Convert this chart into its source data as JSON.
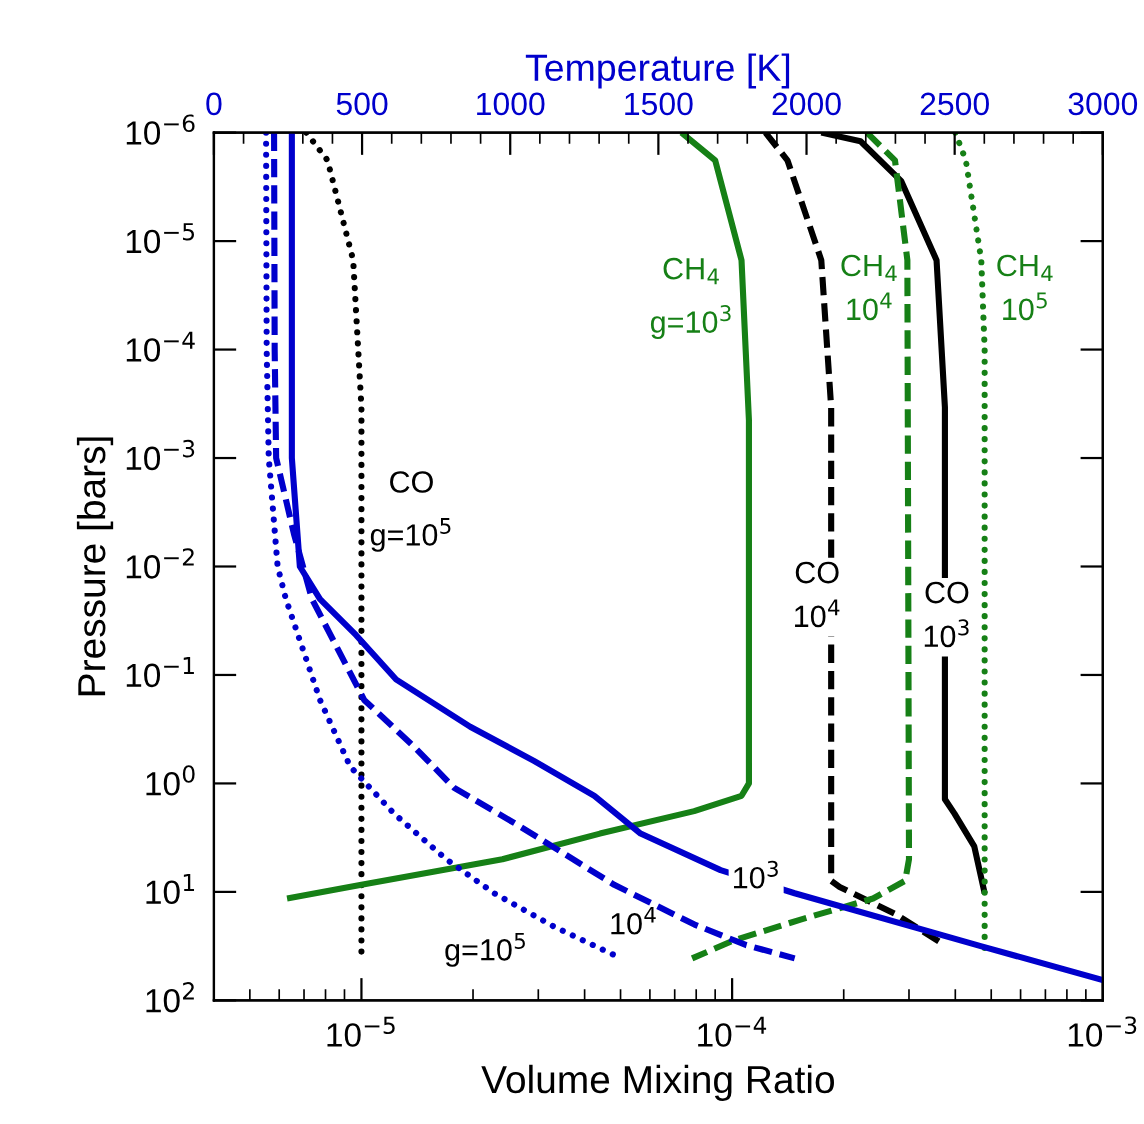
{
  "chart_data": {
    "type": "line",
    "xlabel": "Volume Mixing Ratio",
    "ylabel": "Pressure [bars]",
    "x2label": "Temperature [K]",
    "log": "xy",
    "xlim": [
      4e-06,
      0.001
    ],
    "xticks": [
      {
        "value": 1e-05,
        "label": "10$^{−5}$"
      },
      {
        "value": 0.0001,
        "label": "10$^{−4}$"
      },
      {
        "value": 0.001,
        "label": "10$^{−3}$"
      }
    ],
    "x2lim": [
      0,
      3000
    ],
    "x2ticks": [
      0,
      500,
      1000,
      1500,
      2000,
      2500,
      3000
    ],
    "ylim": [
      100,
      1e-06
    ],
    "yticks": [
      {
        "value": 1e-06,
        "label": "10$^{−6}$"
      },
      {
        "value": 1e-05,
        "label": "10$^{−5}$"
      },
      {
        "value": 0.0001,
        "label": "10$^{−4}$"
      },
      {
        "value": 0.001,
        "label": "10$^{−3}$"
      },
      {
        "value": 0.01,
        "label": "10$^{−2}$"
      },
      {
        "value": 0.1,
        "label": "10$^{−1}$"
      },
      {
        "value": 1,
        "label": "10$^{0}$"
      },
      {
        "value": 10,
        "label": "10$^{1}$"
      },
      {
        "value": 100,
        "label": "10$^{2}$"
      }
    ],
    "series": [
      {
        "axis": "x2",
        "color": "#0000cc",
        "line_style": "solid",
        "x": [
          263,
          263,
          263,
          290,
          358,
          480,
          615,
          865,
          1080,
          1284,
          1440,
          1710,
          1960,
          2588,
          3000
        ],
        "values": [
          1e-06,
          0.0001,
          0.001,
          0.01,
          0.02,
          0.043,
          0.11,
          0.3,
          0.62,
          1.3,
          2.9,
          6.3,
          10.3,
          31.6,
          65
        ]
      },
      {
        "axis": "x2",
        "color": "#0000cc",
        "line_style": "dashed",
        "x": [
          203,
          205,
          210,
          270,
          331,
          507,
          676,
          811,
          1034,
          1351,
          1622,
          1797,
          1960
        ],
        "values": [
          1e-06,
          0.0001,
          0.001,
          0.005,
          0.02,
          0.17,
          0.46,
          1.1,
          2.5,
          8.6,
          20,
          31,
          41
        ]
      },
      {
        "axis": "x2",
        "color": "#0000cc",
        "line_style": "dotted",
        "x": [
          176,
          178,
          185,
          215,
          243,
          358,
          460,
          608,
          784,
          946,
          1149,
          1358
        ],
        "values": [
          1e-06,
          0.0001,
          0.001,
          0.01,
          0.02,
          0.17,
          0.7,
          1.9,
          5,
          10.3,
          21,
          39
        ]
      },
      {
        "name": "CO\ng=10$^{5}$",
        "color": "#000000",
        "line_style": "dotted",
        "x": [
          7.1e-06,
          8.1e-06,
          9.5e-06,
          1e-05,
          1e-05
        ],
        "values": [
          1e-06,
          1.8e-06,
          1.5e-05,
          0.00034,
          38
        ]
      },
      {
        "name": "CO\n10$^{4}$",
        "color": "#000000",
        "line_style": "dashed",
        "x": [
          0.000123,
          0.000141,
          0.000174,
          0.000185,
          0.000185,
          0.000195,
          0.000276,
          0.000375
        ],
        "values": [
          1e-06,
          1.8e-06,
          1.5e-05,
          0.00034,
          7.9,
          9,
          16,
          31
        ]
      },
      {
        "name": "CO\n10$^{3}$",
        "color": "#000000",
        "line_style": "solid",
        "x": [
          0.000174,
          0.000222,
          0.000286,
          0.000356,
          0.000375,
          0.000375,
          0.000398,
          0.00045,
          0.00048
        ],
        "values": [
          1e-06,
          1.2e-06,
          2.8e-06,
          1.5e-05,
          0.00034,
          1.4,
          1.9,
          3.8,
          10.3
        ]
      },
      {
        "name": "CH$_{4}$\ng=10$^{3}$",
        "color": "#168016",
        "line_style": "solid",
        "x": [
          7.3e-05,
          9e-05,
          0.000106,
          0.000111,
          0.000111,
          0.000106,
          7.9e-05,
          4.4e-05,
          2.4e-05,
          1e-05,
          6.3e-06
        ],
        "values": [
          1e-06,
          1.8e-06,
          1.5e-05,
          0.00045,
          1,
          1.3,
          1.8,
          2.9,
          5,
          8.6,
          11.5
        ]
      },
      {
        "name": "CH$_{4}$\n10$^{4}$",
        "color": "#168016",
        "line_style": "dashed",
        "x": [
          0.000231,
          0.000275,
          0.000297,
          0.0003,
          0.000293,
          0.00024,
          0.000153,
          0.000101,
          7.8e-05
        ],
        "values": [
          1e-06,
          1.8e-06,
          1.5e-05,
          5,
          7.9,
          11.5,
          18,
          28,
          41
        ]
      },
      {
        "name": "CH$_{4}$\n10$^{5}$",
        "color": "#168016",
        "line_style": "dotted",
        "x": [
          0.0004,
          0.000427,
          0.00047,
          0.00048,
          0.00048
        ],
        "values": [
          1e-06,
          1.8e-06,
          1.5e-05,
          0.0001,
          38
        ]
      }
    ],
    "annotations": [
      "10$^{3}$",
      "10$^{4}$",
      "g=10$^{5}$"
    ]
  }
}
